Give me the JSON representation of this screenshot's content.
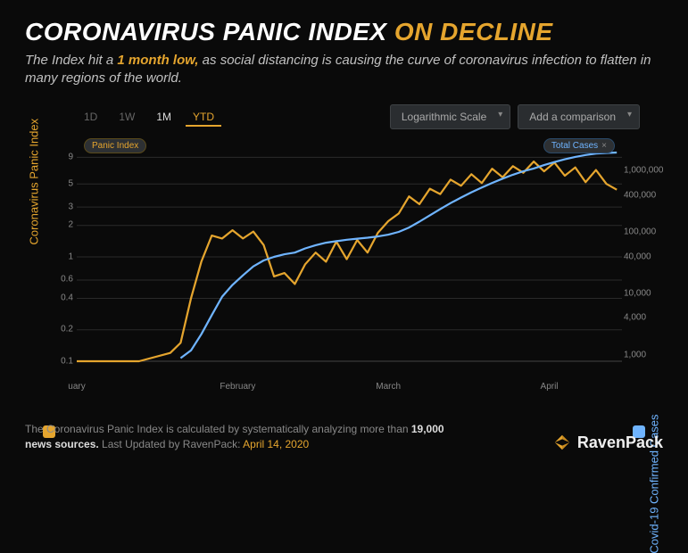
{
  "title": {
    "part1": "CORONAVIRUS PANIC INDEX",
    "part2": "ON DECLINE"
  },
  "subtitle": {
    "pre": "The Index hit a ",
    "bold": "1 month low,",
    "post": " as social distancing is causing the curve of coronavirus infection to flatten in many regions of the world."
  },
  "toolbar": {
    "ranges": [
      "1D",
      "1W",
      "1M",
      "YTD"
    ],
    "active_range": "YTD",
    "dropdown_scale": "Logarithmic Scale",
    "dropdown_compare": "Add a comparison"
  },
  "chart": {
    "type": "line",
    "background": "#0a0a0a",
    "grid_color": "#2a2a2a",
    "axis_color": "#444",
    "left_axis": {
      "label": "Coronavirus Panic Index",
      "color": "#e5a52e",
      "scale": "log",
      "ticks": [
        0.1,
        0.2,
        0.4,
        0.6,
        1,
        2,
        3,
        5,
        9
      ],
      "min": 0.1,
      "max": 10
    },
    "right_axis": {
      "label": "Covid-19 Confirmed Cases",
      "color": "#6fb4ff",
      "scale": "log",
      "ticks": [
        1000,
        4000,
        10000,
        40000,
        100000,
        400000,
        1000000
      ],
      "tick_labels": [
        "1,000",
        "4,000",
        "10,000",
        "40,000",
        "100,000",
        "400,000",
        "1,000,000"
      ],
      "min": 800,
      "max": 2000000
    },
    "x_axis": {
      "ticks": [
        0,
        31,
        60,
        91
      ],
      "tick_labels": [
        "uary",
        "February",
        "March",
        "April"
      ],
      "min": 0,
      "max": 105
    },
    "series": [
      {
        "name": "Panic Index",
        "axis": "left",
        "color": "#e5a52e",
        "line_width": 2.2,
        "data": [
          [
            0,
            0.1
          ],
          [
            7,
            0.1
          ],
          [
            12,
            0.1
          ],
          [
            18,
            0.12
          ],
          [
            20,
            0.15
          ],
          [
            22,
            0.4
          ],
          [
            24,
            0.9
          ],
          [
            26,
            1.6
          ],
          [
            28,
            1.5
          ],
          [
            30,
            1.8
          ],
          [
            32,
            1.5
          ],
          [
            34,
            1.75
          ],
          [
            36,
            1.3
          ],
          [
            38,
            0.65
          ],
          [
            40,
            0.7
          ],
          [
            42,
            0.55
          ],
          [
            44,
            0.85
          ],
          [
            46,
            1.1
          ],
          [
            48,
            0.9
          ],
          [
            50,
            1.4
          ],
          [
            52,
            0.95
          ],
          [
            54,
            1.45
          ],
          [
            56,
            1.1
          ],
          [
            58,
            1.7
          ],
          [
            60,
            2.2
          ],
          [
            62,
            2.6
          ],
          [
            64,
            3.8
          ],
          [
            66,
            3.2
          ],
          [
            68,
            4.5
          ],
          [
            70,
            4.0
          ],
          [
            72,
            5.5
          ],
          [
            74,
            4.8
          ],
          [
            76,
            6.2
          ],
          [
            78,
            5.1
          ],
          [
            80,
            7.0
          ],
          [
            82,
            5.8
          ],
          [
            84,
            7.4
          ],
          [
            86,
            6.4
          ],
          [
            88,
            8.2
          ],
          [
            90,
            6.6
          ],
          [
            92,
            8.0
          ],
          [
            94,
            6.0
          ],
          [
            96,
            7.2
          ],
          [
            98,
            5.2
          ],
          [
            100,
            6.8
          ],
          [
            102,
            5.0
          ],
          [
            104,
            4.4
          ]
        ]
      },
      {
        "name": "Total Cases",
        "axis": "right",
        "color": "#6fb4ff",
        "line_width": 2.2,
        "data": [
          [
            20,
            900
          ],
          [
            22,
            1200
          ],
          [
            24,
            2200
          ],
          [
            26,
            4500
          ],
          [
            28,
            9000
          ],
          [
            30,
            14000
          ],
          [
            32,
            20000
          ],
          [
            34,
            28000
          ],
          [
            36,
            35000
          ],
          [
            38,
            40000
          ],
          [
            40,
            44000
          ],
          [
            42,
            47000
          ],
          [
            44,
            55000
          ],
          [
            46,
            62000
          ],
          [
            48,
            68000
          ],
          [
            50,
            72000
          ],
          [
            52,
            76000
          ],
          [
            54,
            79000
          ],
          [
            56,
            82000
          ],
          [
            58,
            86000
          ],
          [
            60,
            92000
          ],
          [
            62,
            102000
          ],
          [
            64,
            120000
          ],
          [
            66,
            150000
          ],
          [
            68,
            190000
          ],
          [
            70,
            240000
          ],
          [
            72,
            300000
          ],
          [
            74,
            370000
          ],
          [
            76,
            450000
          ],
          [
            78,
            540000
          ],
          [
            80,
            640000
          ],
          [
            82,
            750000
          ],
          [
            84,
            870000
          ],
          [
            86,
            990000
          ],
          [
            88,
            1100000
          ],
          [
            90,
            1250000
          ],
          [
            92,
            1400000
          ],
          [
            94,
            1550000
          ],
          [
            96,
            1700000
          ],
          [
            98,
            1820000
          ],
          [
            100,
            1920000
          ],
          [
            102,
            1970000
          ],
          [
            104,
            2000000
          ]
        ]
      }
    ],
    "pills": {
      "left": "Panic Index",
      "right": "Total Cases"
    }
  },
  "footer": {
    "text_pre": "The Coronavirus Panic Index is calculated by systematically analyzing more than ",
    "text_bold": "19,000 news sources.",
    "text_mid": " Last Updated by RavenPack: ",
    "text_date": "April 14, 2020",
    "brand": "RavenPack"
  },
  "colors": {
    "gold": "#e5a52e",
    "blue": "#6fb4ff",
    "bg": "#0a0a0a"
  }
}
